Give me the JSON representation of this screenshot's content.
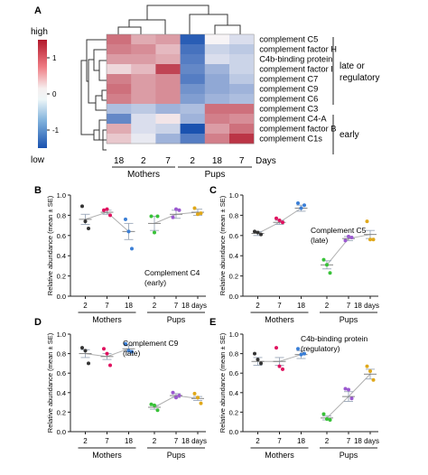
{
  "panel_letters": {
    "A": "A",
    "B": "B",
    "C": "C",
    "D": "D",
    "E": "E"
  },
  "colorbar": {
    "high_label": "high",
    "low_label": "low",
    "ticks": [
      "1",
      "0",
      "-1"
    ],
    "tick_values": [
      1,
      0,
      -1
    ]
  },
  "heatmap": {
    "rows": [
      "complement C5",
      "complement factor H",
      "C4b-binding protein",
      "complement factor I",
      "complement C7",
      "complement C9",
      "complement C6",
      "complement C3",
      "complement C4-A",
      "complement factor B",
      "complement C1s"
    ],
    "columns": [
      "18",
      "2",
      "7",
      "2",
      "18",
      "7"
    ],
    "days_label": "Days",
    "groups": [
      {
        "label": "Mothers"
      },
      {
        "label": "Pups"
      }
    ],
    "brackets": [
      {
        "label": "late or\nregulatory",
        "line1": "late or",
        "line2": "regulatory"
      },
      {
        "label": "early"
      }
    ],
    "values": [
      [
        0.9,
        0.5,
        0.6,
        -1.4,
        0.0,
        -0.2
      ],
      [
        0.8,
        0.7,
        0.4,
        -1.2,
        -0.3,
        -0.4
      ],
      [
        0.6,
        0.6,
        0.5,
        -1.1,
        -0.2,
        -0.3
      ],
      [
        0.2,
        0.4,
        1.2,
        -1.0,
        -0.6,
        -0.3
      ],
      [
        0.8,
        0.6,
        0.7,
        -1.1,
        -0.7,
        -0.4
      ],
      [
        0.9,
        0.6,
        0.7,
        -0.9,
        -0.7,
        -0.6
      ],
      [
        0.8,
        0.6,
        0.7,
        -0.8,
        -0.6,
        -0.5
      ],
      [
        -0.5,
        -0.4,
        -0.6,
        -0.5,
        0.9,
        0.9
      ],
      [
        -1.0,
        -0.2,
        0.1,
        -0.6,
        0.8,
        0.7
      ],
      [
        0.5,
        -0.2,
        -0.3,
        -1.5,
        0.6,
        0.9
      ],
      [
        0.3,
        -0.1,
        -0.6,
        -1.1,
        0.8,
        1.3
      ]
    ]
  },
  "chart_data": [
    {
      "panel": "B",
      "type": "scatter",
      "title": "Complement C4",
      "subtitle": "(early)",
      "ylabel": "Relative abundance (mean ± SE)",
      "ylim": [
        0,
        1
      ],
      "yticks": [
        "0.0",
        "0.2",
        "0.4",
        "0.6",
        "0.8",
        "1.0"
      ],
      "xticks": [
        "2",
        "7",
        "18",
        "2",
        "7",
        "18 days"
      ],
      "groups": [
        "Mothers",
        "Pups"
      ],
      "means": [
        0.76,
        0.83,
        0.64,
        0.72,
        0.81,
        0.83
      ],
      "se": [
        0.05,
        0.02,
        0.08,
        0.07,
        0.04,
        0.03
      ],
      "points": [
        [
          0.89,
          0.74,
          0.67
        ],
        [
          0.85,
          0.86,
          0.8
        ],
        [
          0.76,
          0.64,
          0.47
        ],
        [
          0.79,
          0.63,
          0.79
        ],
        [
          0.78,
          0.86,
          0.85
        ],
        [
          0.87,
          0.81,
          0.82
        ]
      ]
    },
    {
      "panel": "C",
      "type": "scatter",
      "title": "Complement C5",
      "subtitle": "(late)",
      "ylabel": "Relative abundance (mean ± SE)",
      "ylim": [
        0,
        1
      ],
      "yticks": [
        "0.0",
        "0.2",
        "0.4",
        "0.6",
        "0.8",
        "1.0"
      ],
      "xticks": [
        "2",
        "7",
        "18",
        "2",
        "7",
        "18 days"
      ],
      "groups": [
        "Mothers",
        "Pups"
      ],
      "means": [
        0.62,
        0.73,
        0.87,
        0.31,
        0.57,
        0.61
      ],
      "se": [
        0.02,
        0.02,
        0.03,
        0.04,
        0.02,
        0.04
      ],
      "points": [
        [
          0.64,
          0.63,
          0.61
        ],
        [
          0.77,
          0.75,
          0.73
        ],
        [
          0.92,
          0.87,
          0.9
        ],
        [
          0.36,
          0.31,
          0.23
        ],
        [
          0.55,
          0.59,
          0.58
        ],
        [
          0.74,
          0.56,
          0.56
        ]
      ]
    },
    {
      "panel": "D",
      "type": "scatter",
      "title": "Complement C9",
      "subtitle": "(late)",
      "ylabel": "Relative abundance (mean ± SE)",
      "ylim": [
        0,
        1
      ],
      "yticks": [
        "0.0",
        "0.2",
        "0.4",
        "0.6",
        "0.8",
        "1.0"
      ],
      "xticks": [
        "2",
        "7",
        "18",
        "2",
        "7",
        "18 days"
      ],
      "groups": [
        "Mothers",
        "Pups"
      ],
      "means": [
        0.8,
        0.77,
        0.85,
        0.25,
        0.37,
        0.34
      ],
      "se": [
        0.04,
        0.03,
        0.03,
        0.02,
        0.02,
        0.02
      ],
      "points": [
        [
          0.86,
          0.83,
          0.7
        ],
        [
          0.85,
          0.8,
          0.68
        ],
        [
          0.9,
          0.83,
          0.82
        ],
        [
          0.28,
          0.27,
          0.22
        ],
        [
          0.4,
          0.35,
          0.37
        ],
        [
          0.39,
          0.35,
          0.29
        ]
      ]
    },
    {
      "panel": "E",
      "type": "scatter",
      "title": "C4b-binding protein",
      "subtitle": "(regulatory)",
      "ylabel": "Relative abundance (mean ± SE)",
      "ylim": [
        0,
        1
      ],
      "yticks": [
        "0.0",
        "0.2",
        "0.4",
        "0.6",
        "0.8",
        "1.0"
      ],
      "xticks": [
        "2",
        "7",
        "18",
        "2",
        "7",
        "18 days"
      ],
      "groups": [
        "Mothers",
        "Pups"
      ],
      "means": [
        0.72,
        0.72,
        0.79,
        0.14,
        0.36,
        0.59
      ],
      "se": [
        0.04,
        0.04,
        0.04,
        0.02,
        0.05,
        0.05
      ],
      "points": [
        [
          0.8,
          0.74,
          0.7
        ],
        [
          0.86,
          0.67,
          0.64
        ],
        [
          0.85,
          0.79,
          0.8
        ],
        [
          0.18,
          0.13,
          0.12
        ],
        [
          0.44,
          0.43,
          0.34
        ],
        [
          0.67,
          0.62,
          0.53
        ]
      ]
    }
  ],
  "colors": {
    "dots": [
      "#333333",
      "#e0115f",
      "#3b7fd6",
      "#38c238",
      "#9b59d0",
      "#e0a81a"
    ],
    "mean_line": "#b0b0b0",
    "error_bar": "#9aa7b8",
    "axis": "#222222"
  }
}
